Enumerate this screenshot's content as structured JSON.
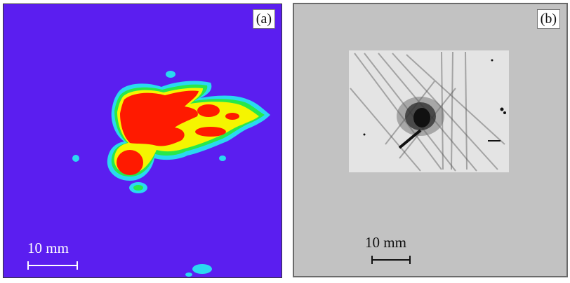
{
  "panel_a": {
    "label": "(a)",
    "scale_text": "10 mm",
    "colors": {
      "background": "#5b1ef0",
      "core": "#ff1a00",
      "rim_yellow": "#f5f500",
      "rim_green": "#28e84a",
      "rim_cyan": "#2ad9f0",
      "scale": "#ffffff"
    }
  },
  "panel_b": {
    "label": "(b)",
    "scale_text": "10 mm",
    "colors": {
      "background": "#c2c2c2",
      "inset": "#e4e4e4",
      "damage": "#1a1a1a",
      "scale": "#111111"
    }
  }
}
